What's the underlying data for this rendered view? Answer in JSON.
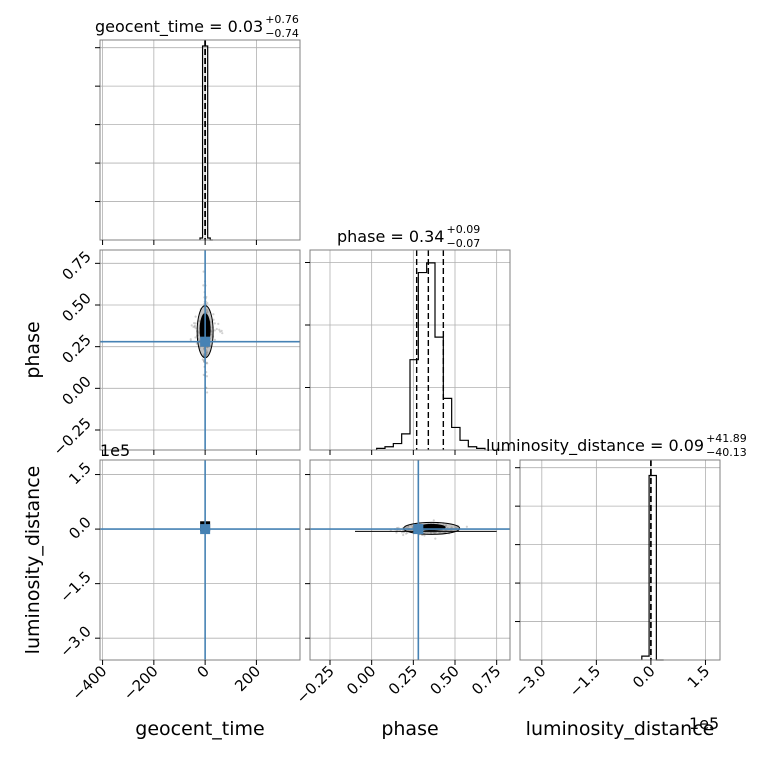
{
  "chart_data": {
    "type": "corner",
    "parameters": [
      "geocent_time",
      "phase",
      "luminosity_distance"
    ],
    "truths": {
      "geocent_time": 0.0,
      "phase": 0.28,
      "luminosity_distance": 0.0
    },
    "titles": [
      {
        "param": "geocent_time",
        "label": "geocent_time = 0.03",
        "sup": "+0.76",
        "sub": "−0.74"
      },
      {
        "param": "phase",
        "label": "phase = 0.34",
        "sup": "+0.09",
        "sub": "−0.07"
      },
      {
        "param": "luminosity_distance",
        "label": "luminosity_distance = 0.09",
        "sup": "+41.89",
        "sub": "−40.13"
      }
    ],
    "axis_labels": {
      "x": [
        "geocent_time",
        "phase",
        "luminosity_distance"
      ],
      "y": [
        "phase",
        "luminosity_distance"
      ]
    },
    "offset_text": "1e5",
    "xticks": {
      "geocent_time": [
        "−400",
        "−200",
        "0",
        "200"
      ],
      "phase": [
        "−0.25",
        "0.00",
        "0.25",
        "0.50",
        "0.75"
      ],
      "luminosity_distance": [
        "−3.0",
        "−1.5",
        "0.0",
        "1.5"
      ]
    },
    "yticks": {
      "phase": [
        "0.75",
        "0.50",
        "0.25",
        "0.00",
        "−0.25"
      ],
      "luminosity_distance": [
        "1.5",
        "0.0",
        "−1.5",
        "−3.0"
      ]
    },
    "ranges": {
      "geocent_time": [
        -410,
        370
      ],
      "phase": [
        -0.37,
        0.83
      ],
      "luminosity_distance": [
        -3.6,
        1.9
      ]
    },
    "hist_geocent_time": {
      "edges": [
        -20,
        -10,
        0,
        10,
        20,
        30
      ],
      "counts": [
        0.01,
        0.97,
        0.97,
        0.01,
        0.0
      ]
    },
    "hist_phase": {
      "edges": [
        0.03,
        0.08,
        0.13,
        0.18,
        0.23,
        0.28,
        0.33,
        0.38,
        0.43,
        0.48,
        0.53,
        0.58,
        0.63,
        0.68
      ],
      "counts": [
        0.005,
        0.01,
        0.02,
        0.05,
        0.28,
        0.55,
        0.58,
        0.35,
        0.16,
        0.07,
        0.03,
        0.01,
        0.005
      ]
    },
    "hist_luminosity_distance": {
      "edges": [
        -0.25,
        -0.05,
        0.15,
        0.35
      ],
      "counts": [
        0.02,
        0.95,
        0.0
      ]
    },
    "quantile_lines": {
      "geocent_time": [
        -0.71,
        0.03,
        0.79
      ],
      "phase": [
        0.27,
        0.34,
        0.43
      ],
      "luminosity_distance": [
        -0.0004,
        0.0,
        0.0004
      ]
    },
    "truth_color": "#4682b4",
    "grid": true
  }
}
